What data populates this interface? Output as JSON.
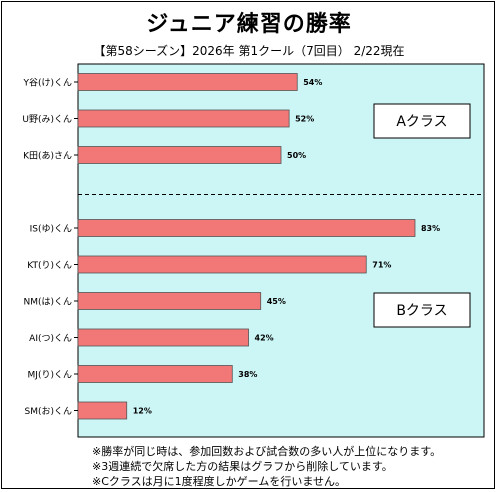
{
  "title": "ジュニア練習の勝率",
  "subtitle": "【第58シーズン】2026年 第1クール（7回目） 2/22現在",
  "colors": {
    "plot_bg": "#ccf5f5",
    "bar": "#f27777",
    "bar_stroke": "#555555"
  },
  "chart_data": {
    "type": "bar",
    "orientation": "horizontal",
    "title": "ジュニア練習の勝率",
    "subtitle": "【第58シーズン】2026年 第1クール（7回目） 2/22現在",
    "xlim": [
      0,
      100
    ],
    "value_unit": "%",
    "groups": [
      {
        "label": "Aクラス",
        "categories": [
          "Y谷(け)くん",
          "U野(み)くん",
          "K田(あ)さん"
        ],
        "values": [
          54,
          52,
          50
        ]
      },
      {
        "label": "Bクラス",
        "categories": [
          "IS(ゆ)くん",
          "KT(り)くん",
          "NM(は)くん",
          "AI(つ)くん",
          "MJ(り)くん",
          "SM(お)くん"
        ],
        "values": [
          83,
          71,
          45,
          42,
          38,
          12
        ]
      }
    ],
    "value_labels": [
      "54%",
      "52%",
      "50%",
      "83%",
      "71%",
      "45%",
      "42%",
      "38%",
      "12%"
    ]
  },
  "notes": [
    "※勝率が同じ時は、参加回数および試合数の多い人が上位になります。",
    "※3週連続で欠席した方の結果はグラフから削除しています。",
    "※Cクラスは月に1度程度しかゲームを行いません。"
  ]
}
